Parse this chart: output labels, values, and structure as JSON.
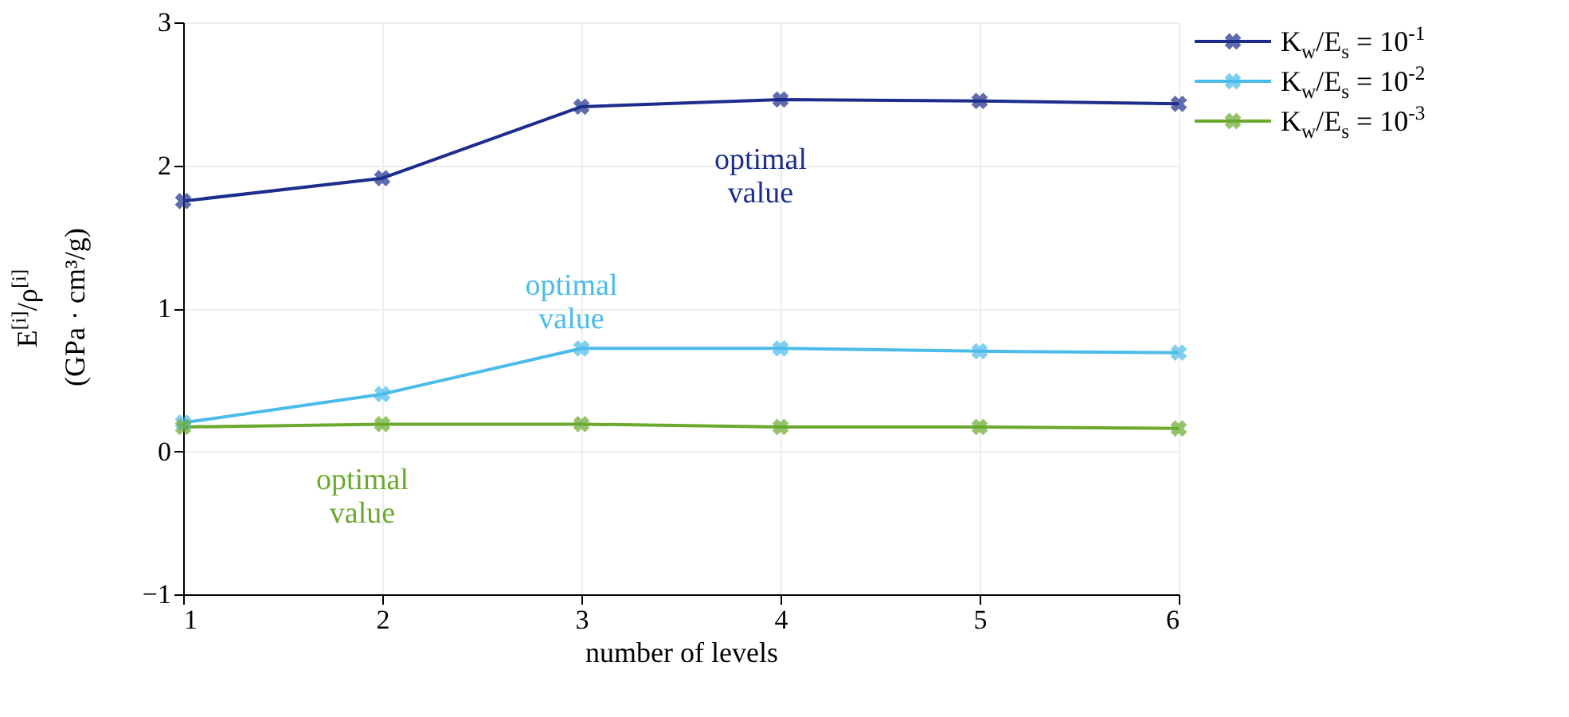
{
  "chart_data": {
    "type": "line",
    "xlabel": "number of levels",
    "ylabel": "E$^{[i]}$/ρ$^{[i]}$\n(GPa · cm³/g)",
    "x": [
      1,
      2,
      3,
      4,
      5,
      6
    ],
    "series": [
      {
        "name": "K$_{w}$/E$_{s}$ = 10$^{-1}$",
        "color": "#1c2d8c",
        "values": [
          1.75,
          1.91,
          2.41,
          2.46,
          2.45,
          2.43
        ]
      },
      {
        "name": "K$_{w}$/E$_{s}$ = 10$^{-2}$",
        "color": "#4bbbea",
        "values": [
          0.2,
          0.4,
          0.72,
          0.72,
          0.7,
          0.69
        ]
      },
      {
        "name": "K$_{w}$/E$_{s}$ = 10$^{-3}$",
        "color": "#6aa92e",
        "values": [
          0.17,
          0.19,
          0.19,
          0.17,
          0.17,
          0.16
        ]
      }
    ],
    "annotations": [
      "optimal value",
      "optimal value",
      "optimal value"
    ],
    "xlim": [
      1,
      6
    ],
    "xticks": [
      1,
      2,
      3,
      4,
      5,
      6
    ],
    "ylim": [
      -1,
      3
    ],
    "yticks": [
      -1,
      0,
      1,
      2,
      3
    ],
    "grid": true,
    "legend": "top right",
    "marker": "cross",
    "line_style": "solid"
  }
}
